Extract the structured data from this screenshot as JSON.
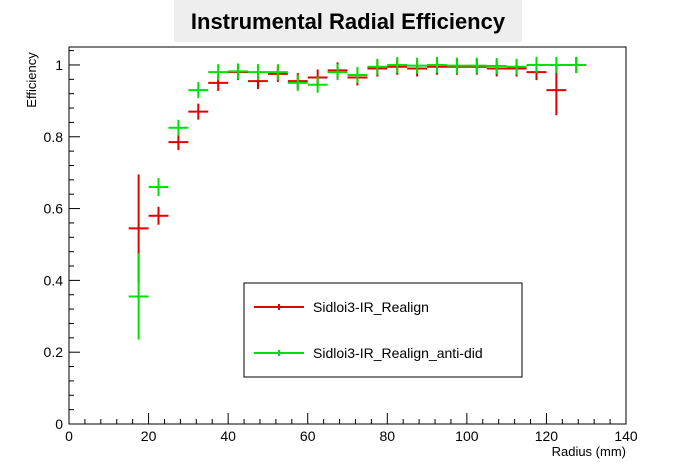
{
  "chart_data": {
    "type": "scatter",
    "title": "Instrumental Radial Efficiency",
    "xlabel": "Radius (mm)",
    "ylabel": "Efficiency",
    "xlim": [
      0,
      140
    ],
    "ylim": [
      0,
      1.05
    ],
    "x_ticks": [
      "0",
      "20",
      "40",
      "60",
      "80",
      "100",
      "120",
      "140"
    ],
    "y_ticks": [
      "0",
      "0.2",
      "0.4",
      "0.6",
      "0.8",
      "1"
    ],
    "grid": false,
    "legend_position": "center-right",
    "series": [
      {
        "name": "Sidloi3-IR_Realign",
        "color": "#e00000",
        "points": [
          {
            "x": 17.5,
            "xerr": 2.5,
            "y": 0.545,
            "yerr": 0.15
          },
          {
            "x": 22.5,
            "xerr": 2.5,
            "y": 0.58,
            "yerr": 0.025
          },
          {
            "x": 27.5,
            "xerr": 2.5,
            "y": 0.785,
            "yerr": 0.02
          },
          {
            "x": 32.5,
            "xerr": 2.5,
            "y": 0.87,
            "yerr": 0.015
          },
          {
            "x": 37.5,
            "xerr": 2.5,
            "y": 0.95,
            "yerr": 0.01
          },
          {
            "x": 42.5,
            "xerr": 2.5,
            "y": 0.98,
            "yerr": 0.008
          },
          {
            "x": 47.5,
            "xerr": 2.5,
            "y": 0.955,
            "yerr": 0.01
          },
          {
            "x": 52.5,
            "xerr": 2.5,
            "y": 0.975,
            "yerr": 0.008
          },
          {
            "x": 57.5,
            "xerr": 2.5,
            "y": 0.955,
            "yerr": 0.01
          },
          {
            "x": 62.5,
            "xerr": 2.5,
            "y": 0.965,
            "yerr": 0.01
          },
          {
            "x": 67.5,
            "xerr": 2.5,
            "y": 0.985,
            "yerr": 0.006
          },
          {
            "x": 72.5,
            "xerr": 2.5,
            "y": 0.965,
            "yerr": 0.01
          },
          {
            "x": 77.5,
            "xerr": 2.5,
            "y": 0.99,
            "yerr": 0.005
          },
          {
            "x": 82.5,
            "xerr": 2.5,
            "y": 0.995,
            "yerr": 0.004
          },
          {
            "x": 87.5,
            "xerr": 2.5,
            "y": 0.99,
            "yerr": 0.005
          },
          {
            "x": 92.5,
            "xerr": 2.5,
            "y": 0.995,
            "yerr": 0.004
          },
          {
            "x": 97.5,
            "xerr": 2.5,
            "y": 0.995,
            "yerr": 0.004
          },
          {
            "x": 102.5,
            "xerr": 2.5,
            "y": 0.995,
            "yerr": 0.004
          },
          {
            "x": 107.5,
            "xerr": 2.5,
            "y": 0.99,
            "yerr": 0.005
          },
          {
            "x": 112.5,
            "xerr": 2.5,
            "y": 0.99,
            "yerr": 0.005
          },
          {
            "x": 117.5,
            "xerr": 2.5,
            "y": 0.98,
            "yerr": 0.015
          },
          {
            "x": 122.5,
            "xerr": 2.5,
            "y": 0.93,
            "yerr": 0.07
          },
          {
            "x": 127.5,
            "xerr": 2.5,
            "y": 1.0,
            "yerr": 0.0
          }
        ]
      },
      {
        "name": "Sidloi3-IR_Realign_anti-did",
        "color": "#00e000",
        "points": [
          {
            "x": 17.5,
            "xerr": 2.5,
            "y": 0.355,
            "yerr": 0.12
          },
          {
            "x": 22.5,
            "xerr": 2.5,
            "y": 0.66,
            "yerr": 0.025
          },
          {
            "x": 27.5,
            "xerr": 2.5,
            "y": 0.825,
            "yerr": 0.02
          },
          {
            "x": 32.5,
            "xerr": 2.5,
            "y": 0.93,
            "yerr": 0.012
          },
          {
            "x": 37.5,
            "xerr": 2.5,
            "y": 0.98,
            "yerr": 0.006
          },
          {
            "x": 42.5,
            "xerr": 2.5,
            "y": 0.982,
            "yerr": 0.006
          },
          {
            "x": 47.5,
            "xerr": 2.5,
            "y": 0.98,
            "yerr": 0.006
          },
          {
            "x": 52.5,
            "xerr": 2.5,
            "y": 0.98,
            "yerr": 0.006
          },
          {
            "x": 57.5,
            "xerr": 2.5,
            "y": 0.95,
            "yerr": 0.01
          },
          {
            "x": 62.5,
            "xerr": 2.5,
            "y": 0.945,
            "yerr": 0.012
          },
          {
            "x": 67.5,
            "xerr": 2.5,
            "y": 0.98,
            "yerr": 0.006
          },
          {
            "x": 72.5,
            "xerr": 2.5,
            "y": 0.972,
            "yerr": 0.008
          },
          {
            "x": 77.5,
            "xerr": 2.5,
            "y": 0.995,
            "yerr": 0.004
          },
          {
            "x": 82.5,
            "xerr": 2.5,
            "y": 1.0,
            "yerr": 0.0
          },
          {
            "x": 87.5,
            "xerr": 2.5,
            "y": 0.998,
            "yerr": 0.002
          },
          {
            "x": 92.5,
            "xerr": 2.5,
            "y": 1.0,
            "yerr": 0.0
          },
          {
            "x": 97.5,
            "xerr": 2.5,
            "y": 0.998,
            "yerr": 0.002
          },
          {
            "x": 102.5,
            "xerr": 2.5,
            "y": 0.998,
            "yerr": 0.002
          },
          {
            "x": 107.5,
            "xerr": 2.5,
            "y": 0.997,
            "yerr": 0.003
          },
          {
            "x": 112.5,
            "xerr": 2.5,
            "y": 0.995,
            "yerr": 0.004
          },
          {
            "x": 117.5,
            "xerr": 2.5,
            "y": 1.0,
            "yerr": 0.0
          },
          {
            "x": 122.5,
            "xerr": 2.5,
            "y": 1.0,
            "yerr": 0.0
          },
          {
            "x": 127.5,
            "xerr": 2.5,
            "y": 1.0,
            "yerr": 0.0
          }
        ]
      }
    ]
  }
}
